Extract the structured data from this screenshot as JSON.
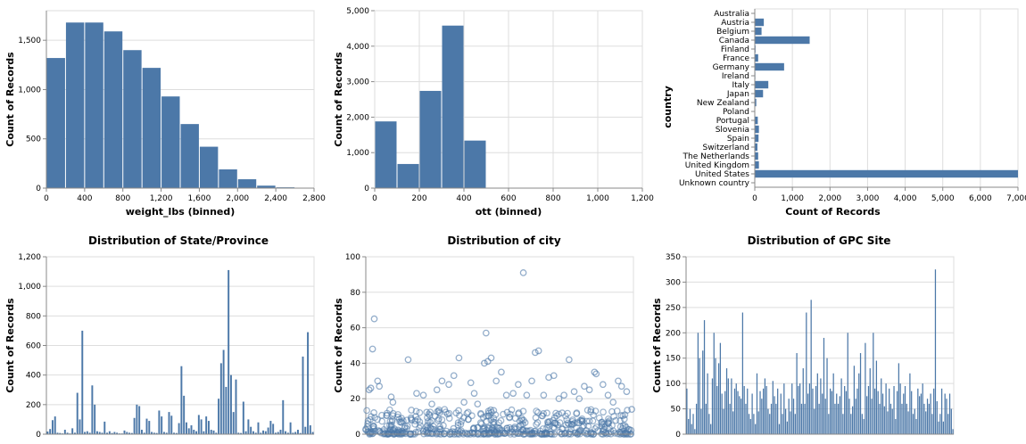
{
  "colors": {
    "bar": "#4c78a8",
    "grid": "#dddddd",
    "axis": "#888888"
  },
  "chart_data": [
    {
      "type": "bar",
      "title": "",
      "xlabel": "weight_lbs (binned)",
      "ylabel": "Count of Records",
      "bin_edges": [
        0,
        200,
        400,
        600,
        800,
        1000,
        1200,
        1400,
        1600,
        1800,
        2000,
        2200,
        2400,
        2600
      ],
      "values": [
        1320,
        1680,
        1680,
        1590,
        1400,
        1220,
        930,
        650,
        420,
        190,
        90,
        25,
        8
      ],
      "xlim": [
        0,
        2800
      ],
      "ylim": [
        0,
        1800
      ],
      "x_ticks": [
        0,
        400,
        800,
        1200,
        1600,
        2000,
        2400,
        2800
      ],
      "x_tick_labels": [
        "0",
        "400",
        "800",
        "1,200",
        "1,600",
        "2,000",
        "2,400",
        "2,800"
      ],
      "y_ticks": [
        0,
        500,
        1000,
        1500
      ],
      "y_tick_labels": [
        "0",
        "500",
        "1,000",
        "1,500"
      ],
      "grid": true
    },
    {
      "type": "bar",
      "title": "",
      "xlabel": "ott (binned)",
      "ylabel": "Count of Records",
      "bin_edges": [
        0,
        100,
        200,
        300,
        400,
        500
      ],
      "values": [
        1880,
        680,
        2740,
        4580,
        1340
      ],
      "xlim": [
        0,
        1200
      ],
      "ylim": [
        0,
        5000
      ],
      "x_ticks": [
        0,
        200,
        400,
        600,
        800,
        1000,
        1200
      ],
      "x_tick_labels": [
        "0",
        "200",
        "400",
        "600",
        "800",
        "1,000",
        "1,200"
      ],
      "y_ticks": [
        0,
        1000,
        2000,
        3000,
        4000,
        5000
      ],
      "y_tick_labels": [
        "0",
        "1,000",
        "2,000",
        "3,000",
        "4,000",
        "5,000"
      ],
      "grid": true
    },
    {
      "type": "bar",
      "orientation": "horizontal",
      "title": "",
      "xlabel": "Count of Records",
      "ylabel": "country",
      "categories": [
        "Australia",
        "Austria",
        "Belgium",
        "Canada",
        "Finland",
        "France",
        "Germany",
        "Ireland",
        "Italy",
        "Japan",
        "New Zealand",
        "Poland",
        "Portugal",
        "Slovenia",
        "Spain",
        "Switzerland",
        "The Netherlands",
        "United Kingdom",
        "United States",
        "Unknown country"
      ],
      "values": [
        10,
        240,
        180,
        1460,
        20,
        90,
        780,
        15,
        360,
        220,
        40,
        10,
        80,
        110,
        100,
        70,
        90,
        110,
        7000,
        5
      ],
      "xlim": [
        0,
        7000
      ],
      "x_ticks": [
        0,
        1000,
        2000,
        3000,
        4000,
        5000,
        6000,
        7000
      ],
      "x_tick_labels": [
        "0",
        "1,000",
        "2,000",
        "3,000",
        "4,000",
        "5,000",
        "6,000",
        "7,000"
      ],
      "grid": true
    },
    {
      "type": "bar",
      "title": "Distribution of State/Province",
      "xlabel": "",
      "ylabel": "Count of Records",
      "values": [
        18,
        35,
        95,
        120,
        10,
        8,
        5,
        30,
        10,
        5,
        40,
        10,
        280,
        100,
        700,
        15,
        20,
        10,
        330,
        200,
        20,
        15,
        10,
        85,
        10,
        20,
        8,
        15,
        10,
        5,
        5,
        25,
        15,
        10,
        8,
        110,
        200,
        190,
        30,
        10,
        105,
        90,
        15,
        10,
        8,
        160,
        120,
        15,
        10,
        150,
        125,
        10,
        8,
        75,
        460,
        260,
        80,
        40,
        60,
        30,
        20,
        130,
        100,
        20,
        120,
        90,
        30,
        25,
        10,
        240,
        480,
        570,
        320,
        1110,
        400,
        150,
        370,
        10,
        8,
        220,
        20,
        100,
        50,
        20,
        10,
        80,
        10,
        25,
        20,
        45,
        90,
        70,
        10,
        15,
        30,
        230,
        20,
        10,
        80,
        10,
        15,
        30,
        8,
        525,
        50,
        690,
        60,
        15
      ],
      "ylim": [
        0,
        1200
      ],
      "y_ticks": [
        0,
        200,
        400,
        600,
        800,
        1000,
        1200
      ],
      "y_tick_labels": [
        "0",
        "200",
        "400",
        "600",
        "800",
        "1,000",
        "1,200"
      ],
      "grid": true
    },
    {
      "type": "scatter",
      "title": "Distribution of city",
      "xlabel": "",
      "ylabel": "Count of Records",
      "high_points": [
        [
          2,
          25
        ],
        [
          3,
          26
        ],
        [
          4,
          48
        ],
        [
          5,
          65
        ],
        [
          7,
          30
        ],
        [
          8,
          27
        ],
        [
          15,
          21
        ],
        [
          16,
          18
        ],
        [
          25,
          42
        ],
        [
          30,
          23
        ],
        [
          34,
          22
        ],
        [
          39,
          17
        ],
        [
          42,
          25
        ],
        [
          45,
          30
        ],
        [
          49,
          28
        ],
        [
          52,
          33
        ],
        [
          55,
          43
        ],
        [
          58,
          18
        ],
        [
          62,
          29
        ],
        [
          64,
          23
        ],
        [
          66,
          17
        ],
        [
          70,
          40
        ],
        [
          71,
          57
        ],
        [
          72,
          41
        ],
        [
          74,
          43
        ],
        [
          77,
          30
        ],
        [
          80,
          35
        ],
        [
          83,
          22
        ],
        [
          87,
          23
        ],
        [
          90,
          28
        ],
        [
          93,
          91
        ],
        [
          95,
          22
        ],
        [
          98,
          30
        ],
        [
          100,
          46
        ],
        [
          102,
          47
        ],
        [
          105,
          22
        ],
        [
          108,
          32
        ],
        [
          111,
          33
        ],
        [
          114,
          20
        ],
        [
          117,
          22
        ],
        [
          120,
          42
        ],
        [
          123,
          24
        ],
        [
          126,
          20
        ],
        [
          129,
          27
        ],
        [
          132,
          25
        ],
        [
          135,
          35
        ],
        [
          136,
          34
        ],
        [
          140,
          28
        ],
        [
          143,
          22
        ],
        [
          146,
          18
        ],
        [
          149,
          30
        ],
        [
          151,
          27
        ],
        [
          154,
          24
        ],
        [
          157,
          14
        ]
      ],
      "dense_count": 520,
      "dense_max": 14,
      "xlim": [
        0,
        158
      ],
      "ylim": [
        0,
        100
      ],
      "y_ticks": [
        0,
        20,
        40,
        60,
        80,
        100
      ],
      "y_tick_labels": [
        "0",
        "20",
        "40",
        "60",
        "80",
        "100"
      ],
      "grid": true
    },
    {
      "type": "bar",
      "title": "Distribution of GPC Site",
      "xlabel": "",
      "ylabel": "Count of Records",
      "values": [
        90,
        30,
        50,
        20,
        40,
        10,
        60,
        200,
        150,
        50,
        165,
        225,
        60,
        120,
        40,
        20,
        110,
        200,
        150,
        95,
        140,
        180,
        80,
        50,
        85,
        130,
        110,
        60,
        110,
        45,
        90,
        100,
        85,
        75,
        70,
        240,
        95,
        60,
        90,
        40,
        30,
        80,
        40,
        20,
        120,
        45,
        85,
        70,
        90,
        110,
        95,
        50,
        40,
        60,
        105,
        75,
        60,
        90,
        20,
        80,
        40,
        100,
        50,
        25,
        70,
        45,
        100,
        70,
        40,
        160,
        95,
        100,
        60,
        130,
        60,
        240,
        80,
        100,
        265,
        90,
        50,
        95,
        120,
        60,
        110,
        80,
        190,
        70,
        150,
        40,
        90,
        85,
        120,
        60,
        80,
        60,
        75,
        110,
        40,
        95,
        85,
        200,
        70,
        40,
        55,
        135,
        70,
        90,
        120,
        160,
        40,
        30,
        180,
        75,
        95,
        130,
        70,
        200,
        90,
        145,
        85,
        60,
        110,
        80,
        55,
        100,
        45,
        90,
        60,
        50,
        95,
        30,
        85,
        140,
        100,
        60,
        80,
        95,
        60,
        45,
        120,
        85,
        40,
        50,
        30,
        90,
        75,
        80,
        100,
        60,
        45,
        70,
        60,
        80,
        40,
        90,
        325,
        65,
        25,
        40,
        90,
        25,
        80,
        70,
        40,
        80,
        50,
        10
      ],
      "ylim": [
        0,
        350
      ],
      "y_ticks": [
        0,
        50,
        100,
        150,
        200,
        250,
        300,
        350
      ],
      "y_tick_labels": [
        "0",
        "50",
        "100",
        "150",
        "200",
        "250",
        "300",
        "350"
      ],
      "grid": true
    }
  ]
}
